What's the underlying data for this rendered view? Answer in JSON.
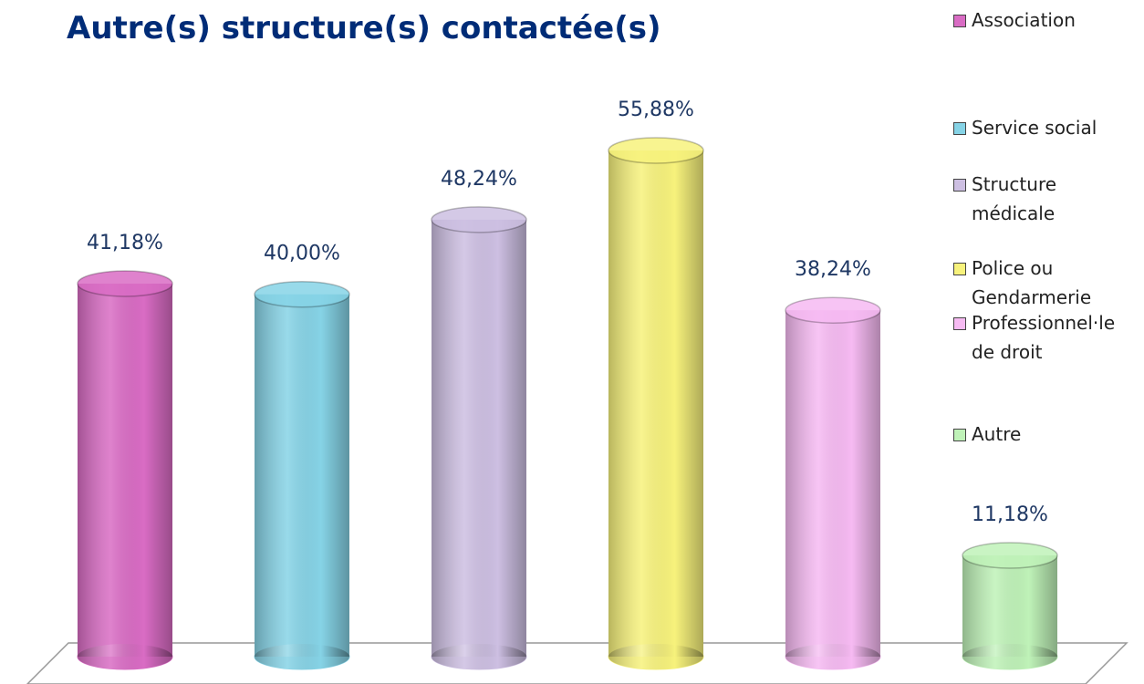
{
  "chart_data": {
    "type": "bar",
    "title": "Autre(s) structure(s) contactée(s)",
    "categories": [
      "Association",
      "Service social",
      "Structure médicale",
      "Police ou Gendarmerie",
      "Professionnel·le de droit",
      "Autre"
    ],
    "values": [
      41.18,
      40.0,
      48.24,
      55.88,
      38.24,
      11.18
    ],
    "value_labels": [
      "41,18%",
      "40,00%",
      "48,24%",
      "55,88%",
      "38,24%",
      "11,18%"
    ],
    "colors": [
      "#d96cc4",
      "#86d3e6",
      "#cdbfe2",
      "#f7f27c",
      "#f6baf2",
      "#bff2b8"
    ]
  }
}
